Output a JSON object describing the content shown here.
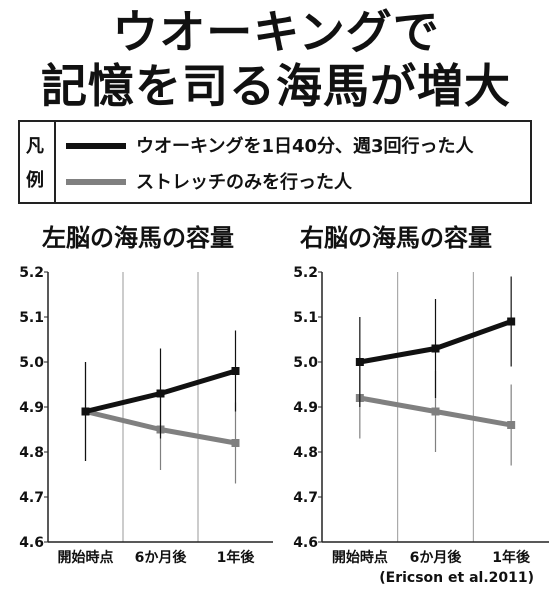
{
  "headline": {
    "line1": "ウオーキングで",
    "line2": "記憶を司る海馬が増大"
  },
  "legend": {
    "label_top": "凡",
    "label_bottom": "例",
    "items": [
      {
        "label": "ウオーキングを1日40分、週3回行った人",
        "color": "#111111"
      },
      {
        "label": "ストレッチのみを行った人",
        "color": "#808080"
      }
    ]
  },
  "chart_data": [
    {
      "type": "line",
      "title": "左脳の海馬の容量",
      "categories": [
        "開始時点",
        "6か月後",
        "1年後"
      ],
      "ylim": [
        4.6,
        5.2
      ],
      "yticks": [
        "4.6",
        "4.7",
        "4.8",
        "4.9",
        "5.0",
        "5.1",
        "5.2"
      ],
      "grid": "vertical",
      "series": [
        {
          "values": [
            4.89,
            4.93,
            4.98
          ],
          "error": [
            0.11,
            0.1,
            0.09
          ],
          "color": "#111111"
        },
        {
          "values": [
            4.89,
            4.85,
            4.82
          ],
          "error": [
            0.11,
            0.09,
            0.09
          ],
          "color": "#808080"
        }
      ]
    },
    {
      "type": "line",
      "title": "右脳の海馬の容量",
      "categories": [
        "開始時点",
        "6か月後",
        "1年後"
      ],
      "ylim": [
        4.6,
        5.2
      ],
      "yticks": [
        "4.6",
        "4.7",
        "4.8",
        "4.9",
        "5.0",
        "5.1",
        "5.2"
      ],
      "grid": "vertical",
      "series": [
        {
          "values": [
            5.0,
            5.03,
            5.09
          ],
          "error": [
            0.1,
            0.11,
            0.1
          ],
          "color": "#111111"
        },
        {
          "values": [
            4.92,
            4.89,
            4.86
          ],
          "error": [
            0.09,
            0.09,
            0.09
          ],
          "color": "#808080"
        }
      ]
    }
  ],
  "citation": "(Ericson et al.2011)"
}
